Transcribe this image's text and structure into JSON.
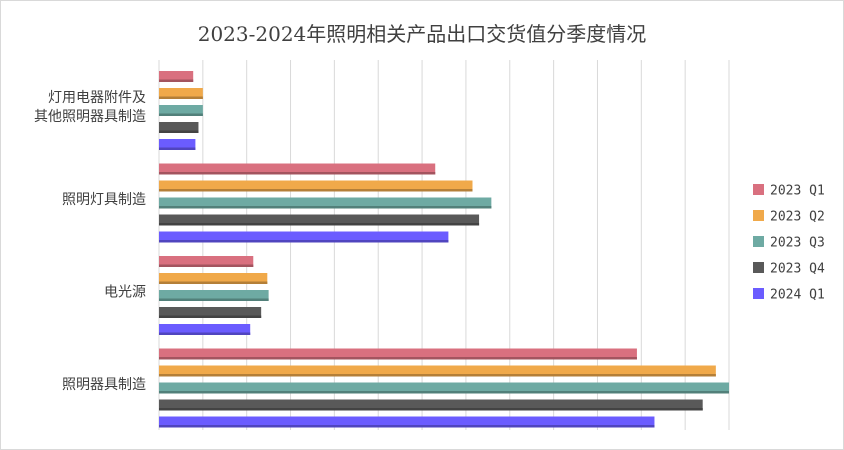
{
  "chart_data": {
    "type": "bar",
    "orientation": "horizontal",
    "title": "2023-2024年照明相关产品出口交货值分季度情况",
    "xlabel": "",
    "ylabel": "",
    "xlim": [
      0,
      13000
    ],
    "grid": true,
    "legend_position": "right",
    "categories": [
      [
        "灯用电器附件及",
        "其他照明器具制造"
      ],
      [
        "照明灯具制造"
      ],
      [
        "电光源"
      ],
      [
        "照明器具制造"
      ]
    ],
    "series": [
      {
        "name": "2023 Q1",
        "color": "#D9707F",
        "values": [
          780,
          6300,
          2150,
          10900
        ]
      },
      {
        "name": "2023 Q2",
        "color": "#F0A94A",
        "values": [
          1000,
          7150,
          2470,
          12700
        ]
      },
      {
        "name": "2023 Q3",
        "color": "#6EAAA3",
        "values": [
          1000,
          7580,
          2500,
          13000
        ]
      },
      {
        "name": "2023 Q4",
        "color": "#595959",
        "values": [
          900,
          7300,
          2330,
          12400
        ]
      },
      {
        "name": "2024 Q1",
        "color": "#6B5CFF",
        "values": [
          830,
          6600,
          2080,
          11300
        ]
      }
    ]
  }
}
